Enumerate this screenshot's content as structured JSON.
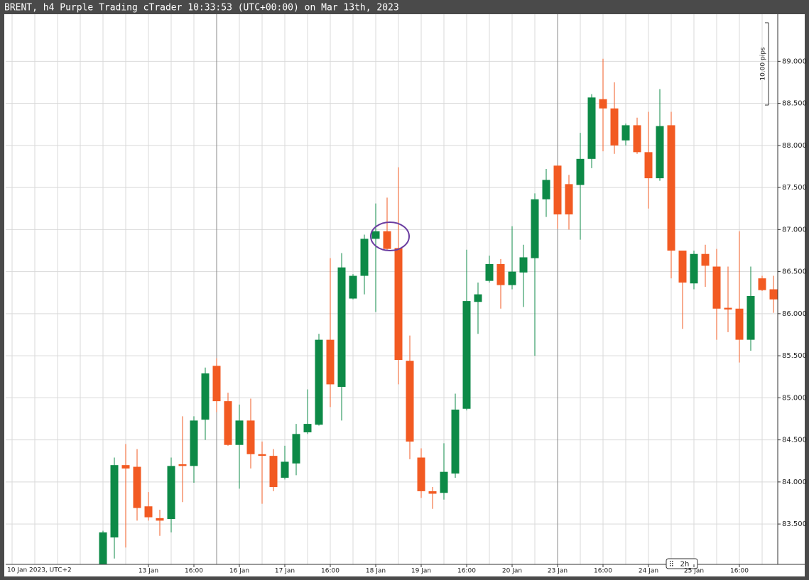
{
  "chart_data": {
    "type": "candlestick",
    "title": "BRENT, h4 Purple Trading cTrader 10:33:53 (UTC+00:00) on Mar 13th, 2023",
    "measure_label": "10.00 pips",
    "period_label": "2h",
    "categories": [
      "10 Jan 2023, UTC+2",
      null,
      null,
      null,
      null,
      null,
      null,
      null,
      null,
      null,
      null,
      null,
      "13 Jan",
      null,
      null,
      null,
      "16:00",
      null,
      null,
      null,
      "16 Jan",
      null,
      null,
      null,
      "17 Jan",
      null,
      null,
      null,
      "16:00",
      null,
      null,
      null,
      "18 Jan",
      null,
      null,
      null,
      "19 Jan",
      null,
      null,
      null,
      "16:00",
      null,
      null,
      null,
      "20 Jan",
      null,
      null,
      null,
      "23 Jan",
      null,
      null,
      null,
      "16:00",
      null,
      null,
      null,
      "24 Jan",
      null,
      null,
      null,
      "25 Jan",
      null,
      null,
      null,
      "16:00",
      null,
      null,
      null
    ],
    "open": [
      null,
      null,
      null,
      null,
      null,
      null,
      null,
      null,
      82.95,
      83.34,
      84.2,
      84.18,
      83.71,
      83.57,
      83.56,
      84.21,
      84.19,
      84.74,
      85.38,
      84.96,
      84.44,
      84.73,
      84.33,
      84.31,
      84.05,
      84.22,
      84.59,
      84.68,
      85.69,
      85.13,
      86.18,
      86.45,
      86.89,
      86.98,
      86.78,
      85.44,
      84.29,
      83.89,
      83.87,
      84.1,
      84.87,
      86.14,
      86.39,
      86.59,
      86.34,
      86.49,
      86.66,
      87.36,
      87.76,
      87.54,
      87.53,
      87.84,
      88.55,
      88.44,
      88.06,
      88.24,
      87.92,
      87.61,
      88.24,
      86.75,
      86.36,
      86.71,
      86.56,
      86.07,
      86.06,
      85.69,
      86.42,
      86.29
    ],
    "high": [
      null,
      null,
      null,
      null,
      null,
      null,
      null,
      null,
      83.42,
      84.29,
      84.45,
      84.39,
      83.88,
      83.67,
      84.29,
      84.78,
      84.78,
      85.36,
      85.47,
      85.06,
      84.92,
      84.99,
      84.48,
      84.39,
      84.43,
      84.69,
      85.1,
      85.76,
      86.66,
      86.72,
      86.47,
      86.94,
      87.31,
      87.38,
      87.74,
      85.74,
      84.4,
      83.94,
      84.46,
      85.05,
      86.76,
      86.37,
      86.69,
      86.65,
      87.04,
      86.82,
      87.43,
      87.72,
      87.76,
      87.65,
      88.15,
      88.61,
      89.03,
      88.75,
      88.26,
      88.33,
      88.4,
      88.67,
      88.4,
      86.75,
      86.75,
      86.82,
      86.77,
      86.56,
      86.98,
      86.56,
      86.45,
      86.45
    ],
    "low": [
      null,
      null,
      null,
      null,
      null,
      null,
      null,
      null,
      82.9,
      83.09,
      83.22,
      83.54,
      83.54,
      83.36,
      83.4,
      83.76,
      83.99,
      84.5,
      84.83,
      84.43,
      83.92,
      84.16,
      83.74,
      83.89,
      84.03,
      84.08,
      84.57,
      84.67,
      84.89,
      84.73,
      86.17,
      86.23,
      86.02,
      86.76,
      85.16,
      84.27,
      83.81,
      83.68,
      83.79,
      84.05,
      84.85,
      85.76,
      86.37,
      86.06,
      86.29,
      86.08,
      85.5,
      87.15,
      87.01,
      87.0,
      86.88,
      87.73,
      87.93,
      87.9,
      88.0,
      87.9,
      87.25,
      87.58,
      86.42,
      85.82,
      86.29,
      86.32,
      85.69,
      85.78,
      85.42,
      85.56,
      86.27,
      86.01
    ],
    "close": [
      null,
      null,
      null,
      null,
      null,
      null,
      null,
      null,
      83.4,
      84.2,
      84.16,
      83.69,
      83.58,
      83.54,
      84.19,
      84.19,
      84.73,
      85.29,
      84.96,
      84.44,
      84.73,
      84.33,
      84.31,
      83.94,
      84.24,
      84.57,
      84.69,
      85.69,
      85.16,
      86.55,
      86.45,
      86.89,
      86.98,
      86.77,
      85.45,
      84.48,
      83.89,
      83.86,
      84.12,
      84.86,
      86.15,
      86.23,
      86.59,
      86.34,
      86.5,
      86.67,
      87.36,
      87.59,
      87.18,
      87.18,
      87.84,
      88.57,
      88.44,
      88.0,
      88.24,
      87.92,
      87.61,
      88.23,
      86.75,
      86.37,
      86.71,
      86.57,
      86.06,
      86.05,
      85.69,
      86.21,
      86.28,
      86.17
    ],
    "up_color": "#0d8a47",
    "down_color": "#f25a22",
    "ylim": [
      83.02,
      89.56
    ],
    "yticks": [
      {
        "value": 83.5,
        "label": "83.500"
      },
      {
        "value": 84,
        "label": "84.000"
      },
      {
        "value": 84.5,
        "label": "84.500"
      },
      {
        "value": 85,
        "label": "85.000"
      },
      {
        "value": 85.5,
        "label": "85.500"
      },
      {
        "value": 86,
        "label": "86.000"
      },
      {
        "value": 86.5,
        "label": "86.500"
      },
      {
        "value": 87,
        "label": "87.000"
      },
      {
        "value": 87.5,
        "label": "87.500"
      },
      {
        "value": 88,
        "label": "88.000"
      },
      {
        "value": 88.5,
        "label": "88.500"
      },
      {
        "value": 89,
        "label": "89.000"
      }
    ],
    "grid": true
  }
}
